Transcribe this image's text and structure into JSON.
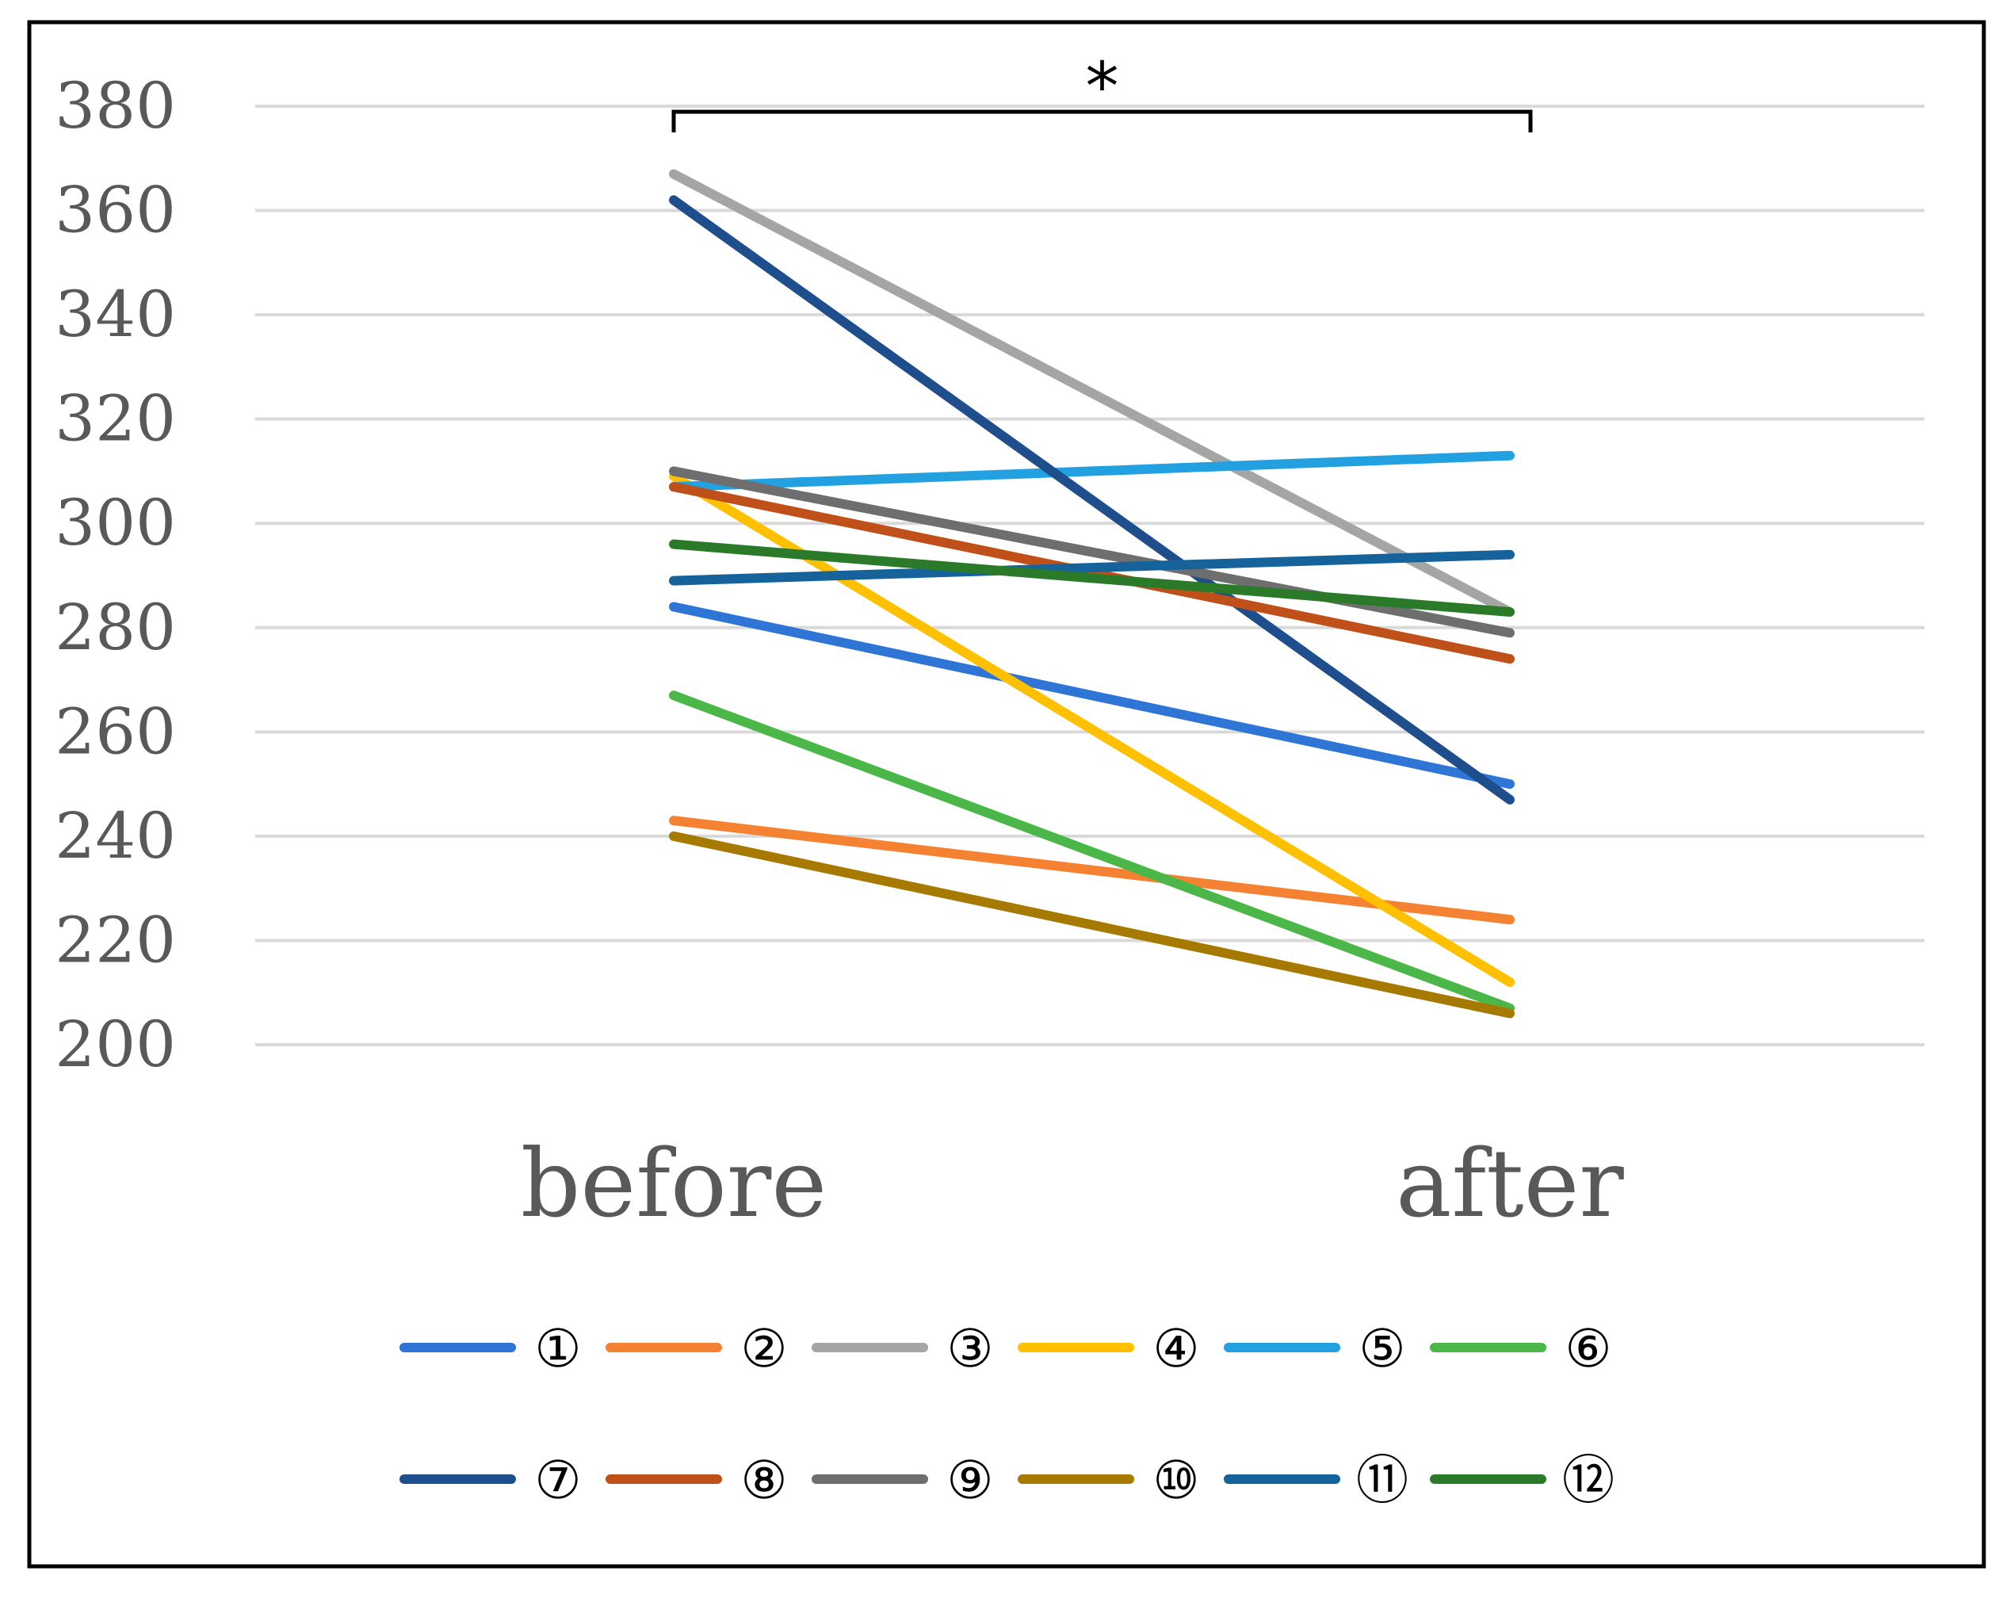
{
  "chart_data": {
    "type": "line",
    "title": "",
    "xlabel": "",
    "ylabel": "",
    "categories": [
      "before",
      "after"
    ],
    "ylim": [
      200,
      380
    ],
    "yticks": [
      200,
      220,
      240,
      260,
      280,
      300,
      320,
      340,
      360,
      380
    ],
    "grid": true,
    "legend_position": "bottom",
    "significance": {
      "label": "*",
      "between": [
        "before",
        "after"
      ]
    },
    "series": [
      {
        "name": "①",
        "color": "#2E75D6",
        "values": [
          284,
          250
        ]
      },
      {
        "name": "②",
        "color": "#F58233",
        "values": [
          243,
          224
        ]
      },
      {
        "name": "③",
        "color": "#A5A5A5",
        "values": [
          367,
          283
        ]
      },
      {
        "name": "④",
        "color": "#FFC000",
        "values": [
          309,
          212
        ]
      },
      {
        "name": "⑤",
        "color": "#22A0E0",
        "values": [
          307,
          313
        ]
      },
      {
        "name": "⑥",
        "color": "#4BB748",
        "values": [
          267,
          207
        ]
      },
      {
        "name": "⑦",
        "color": "#1F4E8C",
        "values": [
          362,
          247
        ]
      },
      {
        "name": "⑧",
        "color": "#C0501A",
        "values": [
          307,
          274
        ]
      },
      {
        "name": "⑨",
        "color": "#6E6E6E",
        "values": [
          310,
          279
        ]
      },
      {
        "name": "⑩",
        "color": "#A67A00",
        "values": [
          240,
          206
        ]
      },
      {
        "name": "⑪",
        "color": "#16639C",
        "values": [
          289,
          294
        ]
      },
      {
        "name": "⑫",
        "color": "#2A7A2A",
        "values": [
          296,
          283
        ]
      }
    ]
  }
}
